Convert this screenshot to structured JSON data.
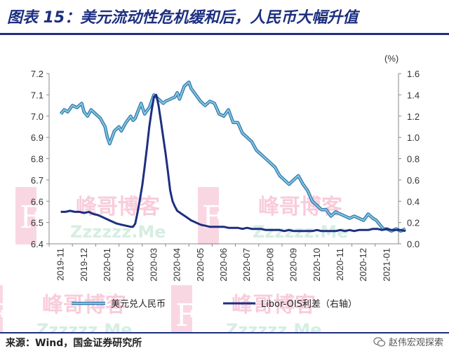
{
  "header": {
    "title": "图表 15：美元流动性危机缓和后，人民币大幅升值"
  },
  "footer": {
    "source": "来源：Wind，国金证券研究所",
    "badge": "赵伟宏观探索"
  },
  "watermark": {
    "text_cn": "峰哥博客",
    "text_en": "Zzzzzz.Me",
    "letter": "F"
  },
  "colors": {
    "usdcny": "#7ec8de",
    "usdcny_outline": "#2e6ea8",
    "libor_ois": "#1d2f80",
    "title": "#1d2f80"
  },
  "chart_data": {
    "type": "line",
    "right_unit": "(%)",
    "x_labels": [
      "2019-11",
      "2019-12",
      "2020-01",
      "2020-02",
      "2020-03",
      "2020-04",
      "2020-05",
      "2020-06",
      "2020-07",
      "2020-08",
      "2020-09",
      "2020-10",
      "2020-11",
      "2020-12",
      "2021-01"
    ],
    "y_left": {
      "min": 6.4,
      "max": 7.2,
      "ticks": [
        "6.4",
        "6.5",
        "6.6",
        "6.7",
        "6.8",
        "6.9",
        "7.0",
        "7.1",
        "7.2"
      ]
    },
    "y_right": {
      "min": 0.0,
      "max": 1.6,
      "ticks": [
        "0.0",
        "0.2",
        "0.4",
        "0.6",
        "0.8",
        "1.0",
        "1.2",
        "1.4",
        "1.6"
      ]
    },
    "series": [
      {
        "name": "美元兑人民币",
        "axis": "left",
        "x": [
          0,
          0.15,
          0.3,
          0.5,
          0.7,
          0.9,
          1.0,
          1.15,
          1.3,
          1.5,
          1.7,
          1.9,
          2.0,
          2.1,
          2.3,
          2.5,
          2.6,
          2.8,
          3.0,
          3.1,
          3.2,
          3.3,
          3.45,
          3.6,
          3.8,
          4.0,
          4.2,
          4.4,
          4.5,
          4.7,
          4.9,
          5.0,
          5.1,
          5.3,
          5.5,
          5.6,
          5.8,
          6.0,
          6.2,
          6.4,
          6.6,
          6.8,
          7.0,
          7.2,
          7.4,
          7.6,
          7.8,
          8.0,
          8.2,
          8.4,
          8.6,
          8.8,
          9.0,
          9.2,
          9.4,
          9.6,
          9.8,
          10.0,
          10.2,
          10.4,
          10.6,
          10.8,
          11.0,
          11.2,
          11.4,
          11.6,
          11.8,
          12.0,
          12.2,
          12.4,
          12.6,
          12.8,
          13.0,
          13.2,
          13.4,
          13.55,
          13.7,
          13.85,
          14.0,
          14.2,
          14.4,
          14.6,
          14.8
        ],
        "y": [
          7.01,
          7.03,
          7.02,
          7.05,
          7.04,
          7.06,
          7.02,
          7.0,
          7.03,
          7.01,
          6.99,
          6.95,
          6.9,
          6.87,
          6.93,
          6.95,
          6.93,
          6.97,
          7.0,
          6.98,
          6.99,
          7.02,
          7.06,
          7.01,
          7.04,
          7.1,
          7.08,
          7.06,
          7.07,
          7.08,
          7.09,
          7.11,
          7.08,
          7.14,
          7.16,
          7.13,
          7.1,
          7.07,
          7.05,
          7.07,
          7.06,
          7.01,
          7.0,
          7.03,
          6.97,
          6.97,
          6.92,
          6.9,
          6.88,
          6.84,
          6.82,
          6.8,
          6.78,
          6.76,
          6.72,
          6.7,
          6.68,
          6.7,
          6.72,
          6.68,
          6.65,
          6.6,
          6.58,
          6.56,
          6.56,
          6.53,
          6.55,
          6.54,
          6.53,
          6.52,
          6.53,
          6.52,
          6.51,
          6.54,
          6.52,
          6.51,
          6.49,
          6.47,
          6.47,
          6.46,
          6.47,
          6.46,
          6.47
        ]
      },
      {
        "name": "Libor-OIS利差（右轴）",
        "axis": "right",
        "x": [
          0,
          0.2,
          0.4,
          0.6,
          0.8,
          1.0,
          1.2,
          1.4,
          1.6,
          1.8,
          2.0,
          2.2,
          2.4,
          2.6,
          2.8,
          3.0,
          3.1,
          3.2,
          3.3,
          3.4,
          3.5,
          3.6,
          3.7,
          3.8,
          3.9,
          4.0,
          4.1,
          4.2,
          4.3,
          4.4,
          4.5,
          4.6,
          4.7,
          4.8,
          4.9,
          5.0,
          5.2,
          5.4,
          5.6,
          5.8,
          6.0,
          6.2,
          6.4,
          6.6,
          6.8,
          7.0,
          7.2,
          7.4,
          7.6,
          7.8,
          8.0,
          8.2,
          8.4,
          8.6,
          8.8,
          9.0,
          9.2,
          9.4,
          9.6,
          9.8,
          10.0,
          10.2,
          10.4,
          10.6,
          10.8,
          11.0,
          11.2,
          11.4,
          11.6,
          11.8,
          12.0,
          12.2,
          12.4,
          12.6,
          12.8,
          13.0,
          13.2,
          13.4,
          13.6,
          13.8,
          14.0,
          14.2,
          14.4,
          14.6,
          14.8
        ],
        "y": [
          0.3,
          0.3,
          0.31,
          0.3,
          0.3,
          0.29,
          0.3,
          0.28,
          0.27,
          0.25,
          0.23,
          0.21,
          0.19,
          0.18,
          0.17,
          0.16,
          0.16,
          0.19,
          0.3,
          0.42,
          0.55,
          0.72,
          0.9,
          1.1,
          1.25,
          1.38,
          1.4,
          1.3,
          1.15,
          1.0,
          0.85,
          0.68,
          0.5,
          0.4,
          0.35,
          0.31,
          0.28,
          0.25,
          0.22,
          0.2,
          0.18,
          0.17,
          0.16,
          0.16,
          0.16,
          0.16,
          0.15,
          0.15,
          0.15,
          0.14,
          0.15,
          0.14,
          0.14,
          0.14,
          0.13,
          0.13,
          0.13,
          0.13,
          0.12,
          0.13,
          0.12,
          0.12,
          0.12,
          0.12,
          0.12,
          0.13,
          0.12,
          0.12,
          0.12,
          0.12,
          0.13,
          0.12,
          0.13,
          0.12,
          0.13,
          0.13,
          0.13,
          0.14,
          0.14,
          0.13,
          0.14,
          0.13,
          0.13,
          0.13,
          0.12
        ]
      }
    ]
  }
}
